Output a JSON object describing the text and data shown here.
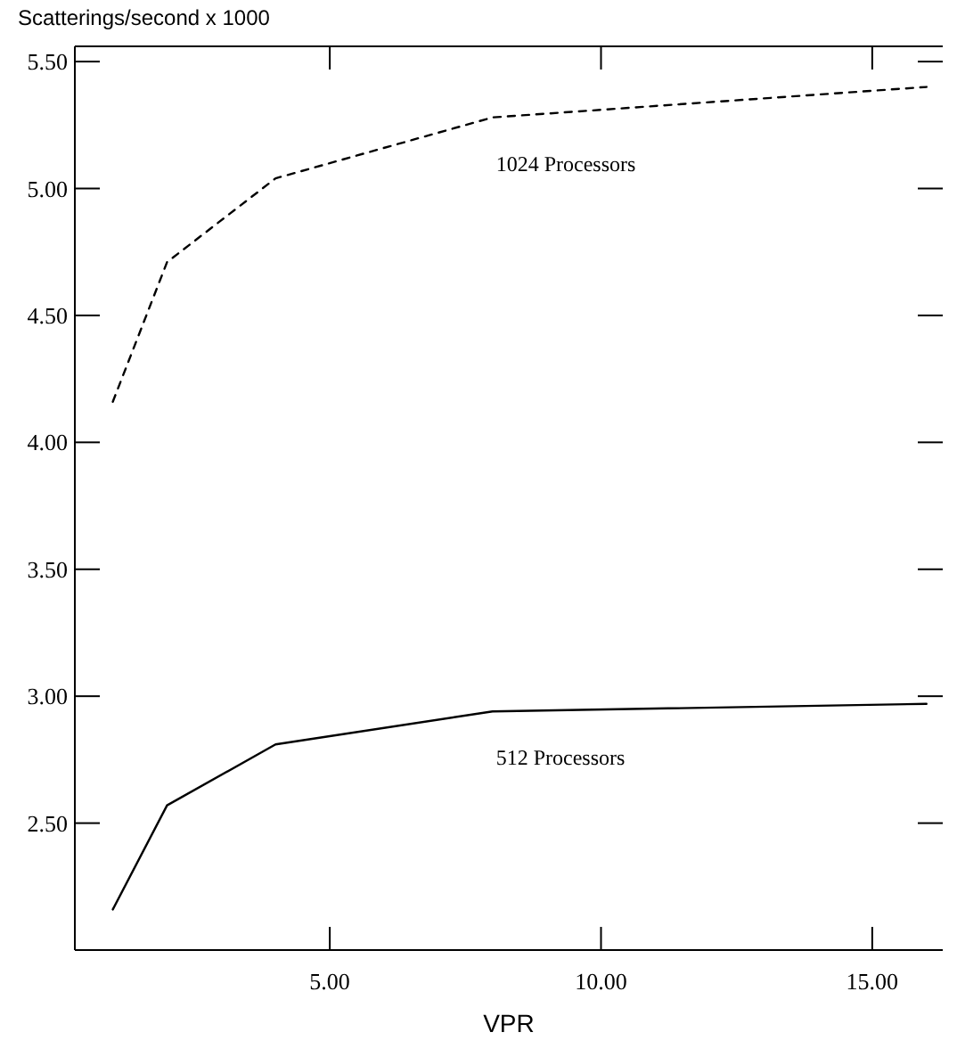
{
  "chart_data": {
    "type": "line",
    "ylabel": "Scatterings/second x 1000",
    "xlabel": "VPR",
    "x": [
      1,
      2,
      4,
      8,
      16
    ],
    "series": [
      {
        "name": "1024 Processors",
        "color": "#000000",
        "line_style": "dashed",
        "values": [
          4.16,
          4.71,
          5.04,
          5.28,
          5.4
        ]
      },
      {
        "name": "512 Processors",
        "color": "#000000",
        "line_style": "solid",
        "values": [
          2.16,
          2.57,
          2.81,
          2.94,
          2.97
        ]
      }
    ],
    "xlim": [
      0.3,
      16.3
    ],
    "ylim": [
      2.0,
      5.56
    ],
    "xticks": [
      {
        "value": 5,
        "label": "5.00"
      },
      {
        "value": 10,
        "label": "10.00"
      },
      {
        "value": 15,
        "label": "15.00"
      }
    ],
    "yticks": [
      {
        "value": 2.5,
        "label": "2.50"
      },
      {
        "value": 3,
        "label": "3.00"
      },
      {
        "value": 3.5,
        "label": "3.50"
      },
      {
        "value": 4,
        "label": "4.00"
      },
      {
        "value": 4.5,
        "label": "4.50"
      },
      {
        "value": 5,
        "label": "5.00"
      },
      {
        "value": 5.5,
        "label": "5.50"
      }
    ],
    "grid": false,
    "marker": "none"
  }
}
